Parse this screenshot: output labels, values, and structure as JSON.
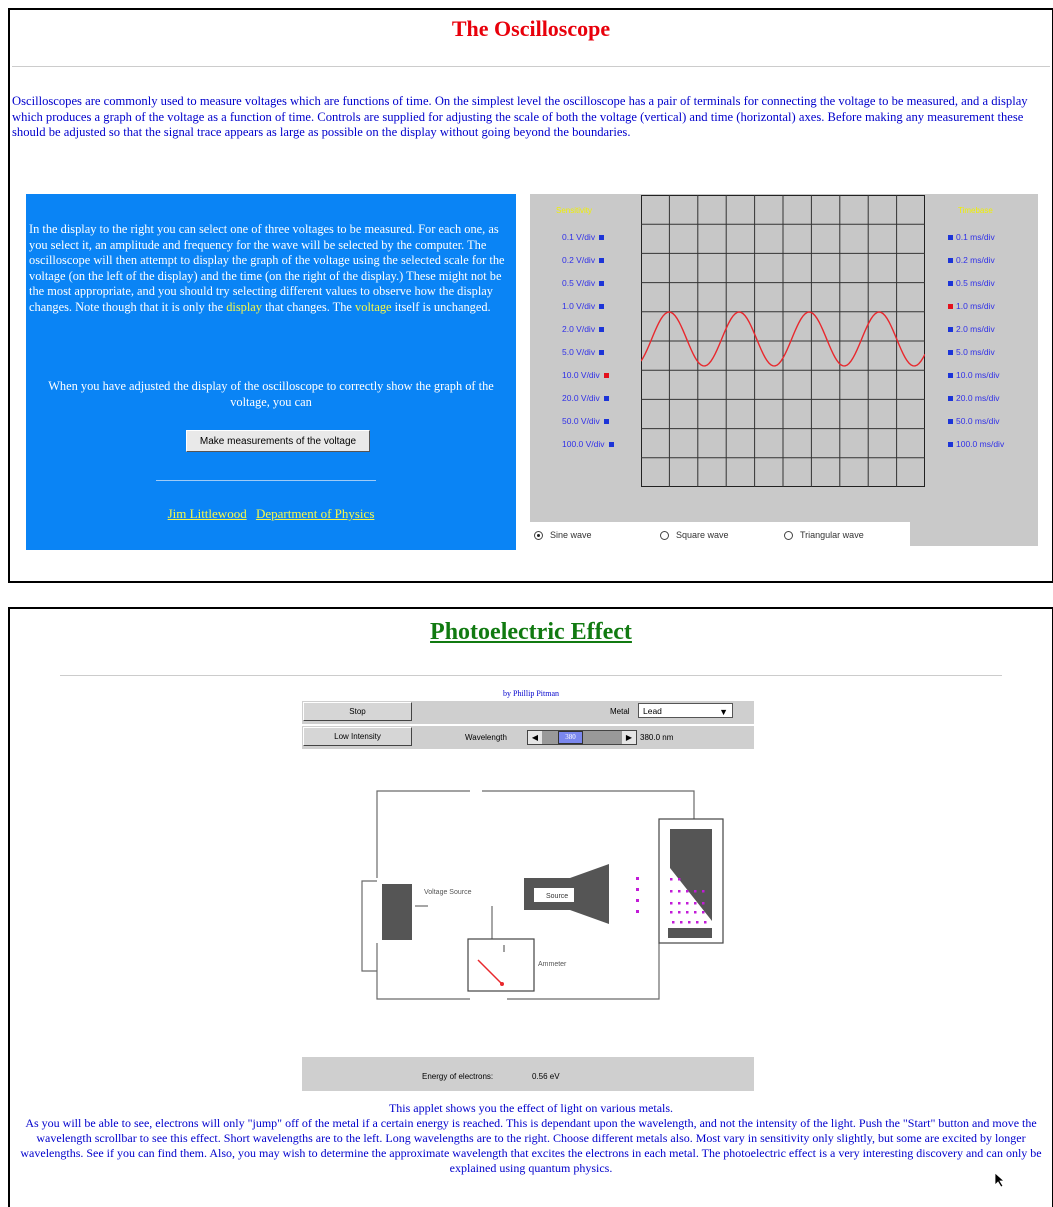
{
  "oscilloscope": {
    "title": "The Oscilloscope",
    "intro": "Oscilloscopes are commonly used to measure voltages which are functions of time. On the simplest level the oscilloscope has a pair of terminals for connecting the voltage to be measured, and a display which produces a graph of the voltage as a function of time. Controls are supplied for adjusting the scale of both the voltage (vertical) and time (horizontal) axes. Before making any measurement these should be adjusted so that the signal trace appears as large as possible on the display without going beyond the boundaries.",
    "panel": {
      "text_a": "In the display to the right you can select one of three voltages to be measured. For each one, as you select it, an amplitude and frequency for the wave will be selected by the computer. The oscilloscope will then attempt to display the graph of the voltage using the selected scale for the voltage (on the left of the display) and the time (on the right of the display.) These might not be the most appropriate, and you should try selecting different values to observe how the display changes. Note though that it is only the",
      "word_display": "display",
      "text_b": "that changes. The",
      "word_voltage": "voltage",
      "text_c": "itself is unchanged.",
      "text2": "When you have adjusted the display of the oscilloscope to correctly show the graph of the voltage, you can",
      "measure_button": "Make measurements of the voltage",
      "link_author": "Jim Littlewood",
      "link_dept": "Department of Physics"
    },
    "scope": {
      "voltage_label": "Sensitivity",
      "time_label": "Timebase",
      "voltage_options": [
        "0.1 V/div",
        "0.2 V/div",
        "0.5 V/div",
        "1.0 V/div",
        "2.0 V/div",
        "5.0 V/div",
        "10.0 V/div",
        "20.0 V/div",
        "50.0 V/div",
        "100.0 V/div"
      ],
      "time_options": [
        "0.1 ms/div",
        "0.2 ms/div",
        "0.5 ms/div",
        "1.0 ms/div",
        "2.0 ms/div",
        "5.0 ms/div",
        "10.0 ms/div",
        "20.0 ms/div",
        "50.0 ms/div",
        "100.0 ms/div"
      ],
      "selected_voltage": "10.0 V/div",
      "selected_time": "1.0 ms/div",
      "trace_color": "#e8282d",
      "wave_options": [
        "Sine wave",
        "Square wave",
        "Triangular wave"
      ],
      "selected_wave": "Sine wave"
    }
  },
  "photoelectric": {
    "title": "Photoelectric Effect",
    "byline": "by Phillip Pitman",
    "stop_button": "Stop",
    "intensity_button": "Low Intensity",
    "metal_label": "Metal",
    "metal_value": "Lead",
    "wavelength_label": "Wavelength",
    "wavelength_value": "380.0 nm",
    "scroll_value": "380",
    "voltage_source_label": "Voltage Source",
    "ammeter_label": "Ammeter",
    "source_label": "Source",
    "energy_label": "Energy of electrons:",
    "energy_value": "0.56 eV",
    "desc_line1": "This applet shows you the effect of light on various metals.",
    "desc_rest": "As you will be able to see, electrons will only \"jump\" off of the metal if a certain energy is reached. This is dependant upon the wavelength, and not the intensity of the light. Push the \"Start\" button and move the wavelength scrollbar to see this effect. Short wavelengths are to the left. Long wavelengths are to the right. Choose different metals also. Most vary in sensitivity only slightly, but some are excited by longer wavelengths. See if you can find them. Also, you may wish to determine the approximate wavelength that excites the electrons in each metal. The photoelectric effect is a very interesting discovery and can only be explained using quantum physics."
  }
}
